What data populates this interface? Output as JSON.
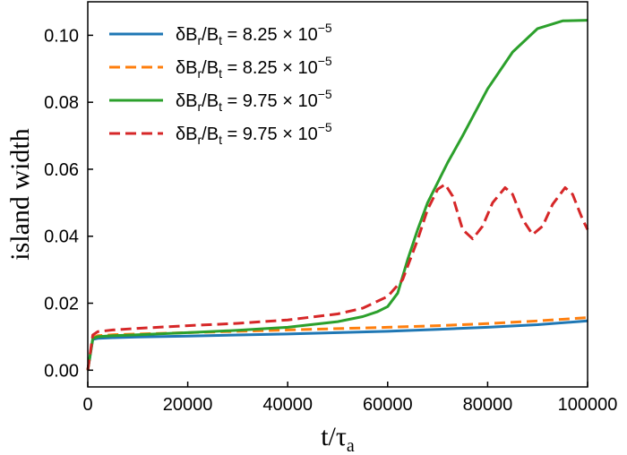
{
  "chart_data": {
    "type": "line",
    "title": "",
    "xlabel": "t/τ",
    "xlabel_sub": "a",
    "ylabel": "island width",
    "xlim": [
      0,
      100000
    ],
    "ylim": [
      -0.005,
      0.11
    ],
    "xticks": [
      0,
      20000,
      40000,
      60000,
      80000,
      100000
    ],
    "yticks": [
      0.0,
      0.02,
      0.04,
      0.06,
      0.08,
      0.1
    ],
    "xtick_labels": [
      "0",
      "20000",
      "40000",
      "60000",
      "80000",
      "100000"
    ],
    "ytick_labels": [
      "0.00",
      "0.02",
      "0.04",
      "0.06",
      "0.08",
      "0.10"
    ],
    "grid": false,
    "legend_position": "top-left",
    "series": [
      {
        "name": "δBr/Bt = 8.25 × 10−5",
        "legend": {
          "lead": "δB",
          "sub1": "r",
          "mid": "/B",
          "sub2": "t",
          "rest": " = 8.25 × 10",
          "exp": "−5"
        },
        "color": "#1f77b4",
        "dash": "solid",
        "x": [
          0,
          1000,
          2000,
          5000,
          10000,
          20000,
          30000,
          40000,
          50000,
          60000,
          70000,
          80000,
          90000,
          100000
        ],
        "y": [
          0.0,
          0.0092,
          0.0095,
          0.0097,
          0.0099,
          0.0102,
          0.0105,
          0.0108,
          0.0112,
          0.0116,
          0.0122,
          0.0128,
          0.0136,
          0.0147
        ]
      },
      {
        "name": "δBr/Bt = 8.25 × 10−5",
        "legend": {
          "lead": "δB",
          "sub1": "r",
          "mid": "/B",
          "sub2": "t",
          "rest": " = 8.25 × 10",
          "exp": "−5"
        },
        "color": "#ff7f0e",
        "dash": "dashed",
        "x": [
          0,
          1000,
          2000,
          5000,
          10000,
          20000,
          30000,
          40000,
          50000,
          60000,
          70000,
          80000,
          90000,
          100000
        ],
        "y": [
          0.0,
          0.0098,
          0.0103,
          0.0106,
          0.0108,
          0.0112,
          0.0116,
          0.012,
          0.0124,
          0.0128,
          0.0133,
          0.0139,
          0.0147,
          0.0157
        ]
      },
      {
        "name": "δBr/Bt = 9.75 × 10−5",
        "legend": {
          "lead": "δB",
          "sub1": "r",
          "mid": "/B",
          "sub2": "t",
          "rest": " = 9.75 × 10",
          "exp": "−5"
        },
        "color": "#2ca02c",
        "dash": "solid",
        "x": [
          0,
          1000,
          2000,
          5000,
          10000,
          20000,
          30000,
          40000,
          50000,
          55000,
          58000,
          60000,
          62000,
          64000,
          66000,
          68000,
          70000,
          72000,
          75000,
          80000,
          85000,
          90000,
          95000,
          100000
        ],
        "y": [
          0.0,
          0.0095,
          0.01,
          0.0103,
          0.0106,
          0.0112,
          0.0119,
          0.0128,
          0.0145,
          0.016,
          0.0175,
          0.019,
          0.023,
          0.033,
          0.042,
          0.05,
          0.056,
          0.062,
          0.07,
          0.084,
          0.095,
          0.102,
          0.1043,
          0.1045
        ]
      },
      {
        "name": "δBr/Bt = 9.75 × 10−5",
        "legend": {
          "lead": "δB",
          "sub1": "r",
          "mid": "/B",
          "sub2": "t",
          "rest": " = 9.75 × 10",
          "exp": "−5"
        },
        "color": "#d62728",
        "dash": "dashed",
        "x": [
          0,
          1000,
          2000,
          5000,
          10000,
          20000,
          30000,
          40000,
          50000,
          55000,
          60000,
          63000,
          66000,
          68000,
          70000,
          71500,
          73000,
          75000,
          77000,
          79000,
          81000,
          83500,
          85000,
          87000,
          89000,
          91000,
          93000,
          95500,
          97000,
          99000,
          100000
        ],
        "y": [
          0.0,
          0.0105,
          0.0115,
          0.012,
          0.0125,
          0.0133,
          0.014,
          0.015,
          0.0168,
          0.0185,
          0.022,
          0.027,
          0.039,
          0.048,
          0.054,
          0.0555,
          0.052,
          0.042,
          0.0392,
          0.043,
          0.05,
          0.0545,
          0.0525,
          0.045,
          0.0405,
          0.043,
          0.0495,
          0.0545,
          0.0525,
          0.045,
          0.042
        ]
      }
    ]
  }
}
